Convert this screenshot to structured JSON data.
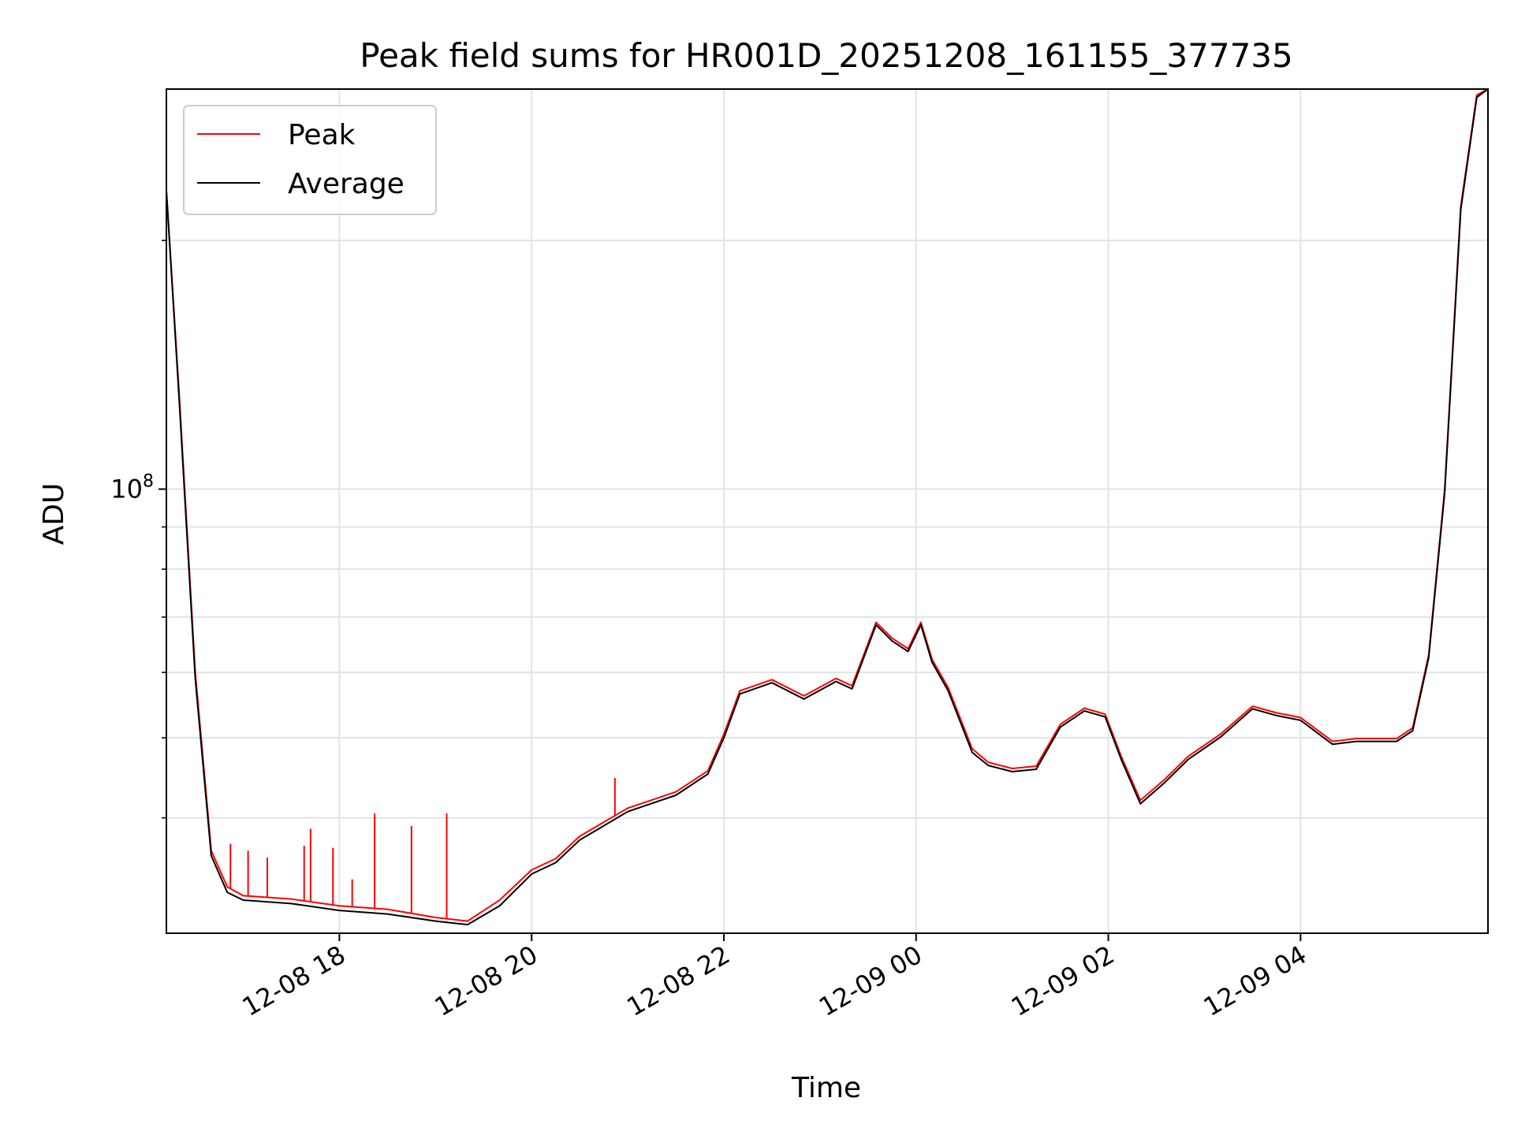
{
  "chart_data": {
    "type": "line",
    "title": "Peak field sums for HR001D_20251208_161155_377735",
    "xlabel": "Time",
    "ylabel": "ADU",
    "y_scale": "log",
    "grid": true,
    "legend_position": "top-left",
    "x_range": [
      "2025-12-08 16:12",
      "2025-12-09 05:57"
    ],
    "y_range": [
      29000000,
      305000000
    ],
    "x_ticks": [
      {
        "value": "2025-12-08 18:00",
        "label": "12-08 18"
      },
      {
        "value": "2025-12-08 20:00",
        "label": "12-08 20"
      },
      {
        "value": "2025-12-08 22:00",
        "label": "12-08 22"
      },
      {
        "value": "2025-12-09 00:00",
        "label": "12-09 00"
      },
      {
        "value": "2025-12-09 02:00",
        "label": "12-09 02"
      },
      {
        "value": "2025-12-09 04:00",
        "label": "12-09 04"
      }
    ],
    "y_major_ticks": [
      {
        "value": 100000000,
        "base": "10",
        "exponent": "8"
      }
    ],
    "y_minor_ticks": [
      40000000,
      50000000,
      60000000,
      70000000,
      80000000,
      90000000,
      200000000
    ],
    "series": [
      {
        "name": "Peak",
        "color": "#ff0000",
        "x": [
          "2025-12-08 16:12",
          "2025-12-08 16:20",
          "2025-12-08 16:30",
          "2025-12-08 16:40",
          "2025-12-08 16:50",
          "2025-12-08 17:00",
          "2025-12-08 17:30",
          "2025-12-08 18:00",
          "2025-12-08 18:30",
          "2025-12-08 19:00",
          "2025-12-08 19:20",
          "2025-12-08 19:40",
          "2025-12-08 20:00",
          "2025-12-08 20:15",
          "2025-12-08 20:30",
          "2025-12-08 21:00",
          "2025-12-08 21:30",
          "2025-12-08 21:50",
          "2025-12-08 22:00",
          "2025-12-08 22:10",
          "2025-12-08 22:30",
          "2025-12-08 22:50",
          "2025-12-08 23:10",
          "2025-12-08 23:20",
          "2025-12-08 23:35",
          "2025-12-08 23:45",
          "2025-12-08 23:55",
          "2025-12-09 00:03",
          "2025-12-09 00:10",
          "2025-12-09 00:20",
          "2025-12-09 00:35",
          "2025-12-09 00:45",
          "2025-12-09 01:00",
          "2025-12-09 01:15",
          "2025-12-09 01:30",
          "2025-12-09 01:45",
          "2025-12-09 01:58",
          "2025-12-09 02:08",
          "2025-12-09 02:20",
          "2025-12-09 02:35",
          "2025-12-09 02:50",
          "2025-12-09 03:10",
          "2025-12-09 03:30",
          "2025-12-09 03:45",
          "2025-12-09 04:00",
          "2025-12-09 04:20",
          "2025-12-09 04:35",
          "2025-12-09 05:00",
          "2025-12-09 05:10",
          "2025-12-09 05:20",
          "2025-12-09 05:30",
          "2025-12-09 05:40",
          "2025-12-09 05:50",
          "2025-12-09 05:57"
        ],
        "y": [
          230000000,
          130000000,
          60000000,
          36500000,
          33000000,
          32200000,
          31900000,
          31300000,
          31000000,
          30300000,
          30000000,
          31800000,
          34600000,
          35700000,
          38000000,
          41100000,
          43000000,
          45600000,
          50500000,
          57000000,
          58800000,
          56200000,
          59000000,
          57800000,
          69000000,
          66000000,
          64100000,
          69000000,
          62200000,
          57500000,
          48500000,
          46700000,
          45900000,
          46200000,
          51900000,
          54300000,
          53400000,
          47500000,
          42000000,
          44500000,
          47500000,
          50500000,
          54600000,
          53600000,
          52900000,
          49500000,
          49900000,
          49900000,
          51400000,
          63000000,
          100000000,
          220000000,
          300000000,
          305000000
        ]
      },
      {
        "name": "Average",
        "color": "#000000",
        "x": [
          "2025-12-08 16:12",
          "2025-12-08 16:20",
          "2025-12-08 16:30",
          "2025-12-08 16:40",
          "2025-12-08 16:50",
          "2025-12-08 17:00",
          "2025-12-08 17:30",
          "2025-12-08 18:00",
          "2025-12-08 18:30",
          "2025-12-08 19:00",
          "2025-12-08 19:20",
          "2025-12-08 19:40",
          "2025-12-08 20:00",
          "2025-12-08 20:15",
          "2025-12-08 20:30",
          "2025-12-08 21:00",
          "2025-12-08 21:30",
          "2025-12-08 21:50",
          "2025-12-08 22:00",
          "2025-12-08 22:10",
          "2025-12-08 22:30",
          "2025-12-08 22:50",
          "2025-12-08 23:10",
          "2025-12-08 23:20",
          "2025-12-08 23:35",
          "2025-12-08 23:45",
          "2025-12-08 23:55",
          "2025-12-09 00:03",
          "2025-12-09 00:10",
          "2025-12-09 00:20",
          "2025-12-09 00:35",
          "2025-12-09 00:45",
          "2025-12-09 01:00",
          "2025-12-09 01:15",
          "2025-12-09 01:30",
          "2025-12-09 01:45",
          "2025-12-09 01:58",
          "2025-12-09 02:08",
          "2025-12-09 02:20",
          "2025-12-09 02:35",
          "2025-12-09 02:50",
          "2025-12-09 03:10",
          "2025-12-09 03:30",
          "2025-12-09 03:45",
          "2025-12-09 04:00",
          "2025-12-09 04:20",
          "2025-12-09 04:35",
          "2025-12-09 05:00",
          "2025-12-09 05:10",
          "2025-12-09 05:20",
          "2025-12-09 05:30",
          "2025-12-09 05:40",
          "2025-12-09 05:50",
          "2025-12-09 05:57"
        ],
        "y": [
          230000000,
          128000000,
          59000000,
          36000000,
          32500000,
          31800000,
          31500000,
          30900000,
          30600000,
          30000000,
          29700000,
          31300000,
          34200000,
          35300000,
          37600000,
          40700000,
          42600000,
          45200000,
          50000000,
          56500000,
          58300000,
          55700000,
          58500000,
          57300000,
          68500000,
          65500000,
          63600000,
          68500000,
          61700000,
          57000000,
          48000000,
          46300000,
          45500000,
          45800000,
          51500000,
          53900000,
          53000000,
          47100000,
          41600000,
          44100000,
          47100000,
          50100000,
          54200000,
          53200000,
          52500000,
          49100000,
          49500000,
          49500000,
          51000000,
          62500000,
          99000000,
          218000000,
          298000000,
          305000000
        ]
      }
    ],
    "spikes": {
      "series": "Peak",
      "x": [
        "2025-12-08 16:52",
        "2025-12-08 17:03",
        "2025-12-08 17:15",
        "2025-12-08 17:38",
        "2025-12-08 17:42",
        "2025-12-08 17:56",
        "2025-12-08 18:08",
        "2025-12-08 18:22",
        "2025-12-08 18:45",
        "2025-12-08 19:07",
        "2025-12-08 20:52"
      ],
      "y": [
        37200000,
        36500000,
        35800000,
        37000000,
        38800000,
        36800000,
        33700000,
        40500000,
        39100000,
        40500000,
        44700000
      ]
    }
  }
}
